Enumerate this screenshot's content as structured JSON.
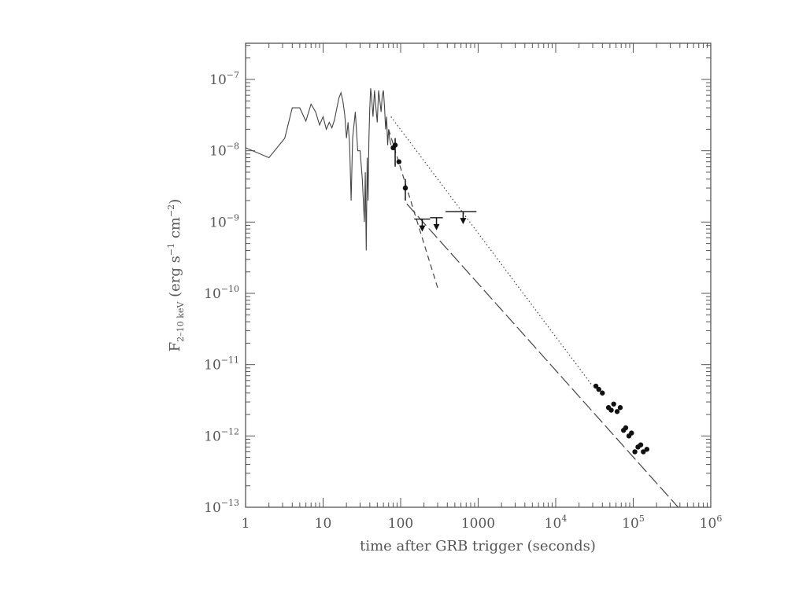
{
  "chart_data": {
    "type": "line",
    "xscale": "log",
    "yscale": "log",
    "xlim": [
      1,
      1000000
    ],
    "ylim": [
      1e-13,
      3e-07
    ],
    "grid": false,
    "legend": "none",
    "xlabel": "time after GRB trigger (seconds)",
    "ylabel": {
      "main": "F",
      "subscript": "2–10 keV",
      "units_open": " (erg s",
      "units_exp1": "−1",
      "units_mid": " cm",
      "units_exp2": "−2",
      "units_close": ")"
    },
    "x_ticks": [
      {
        "value": 1,
        "base": "1",
        "exp": ""
      },
      {
        "value": 10,
        "base": "10",
        "exp": ""
      },
      {
        "value": 100,
        "base": "100",
        "exp": ""
      },
      {
        "value": 1000,
        "base": "1000",
        "exp": ""
      },
      {
        "value": 10000,
        "base": "10",
        "exp": "4"
      },
      {
        "value": 100000,
        "base": "10",
        "exp": "5"
      },
      {
        "value": 1000000,
        "base": "10",
        "exp": "6"
      }
    ],
    "y_ticks": [
      {
        "value": 1e-13,
        "base": "10",
        "exp": "−13"
      },
      {
        "value": 1e-12,
        "base": "10",
        "exp": "−12"
      },
      {
        "value": 1e-11,
        "base": "10",
        "exp": "−11"
      },
      {
        "value": 1e-10,
        "base": "10",
        "exp": "−10"
      },
      {
        "value": 1e-09,
        "base": "10",
        "exp": "−9"
      },
      {
        "value": 1e-08,
        "base": "10",
        "exp": "−8"
      },
      {
        "value": 1e-07,
        "base": "10",
        "exp": "−7"
      }
    ],
    "colors": {
      "axis": "#555555",
      "data": "#444444",
      "points": "#111111"
    },
    "series": [
      {
        "style": "solid",
        "x": [
          1,
          2,
          3.2,
          4,
          5,
          6,
          7,
          8,
          9,
          10,
          11,
          12,
          13,
          14,
          16,
          17,
          18,
          19,
          20,
          21,
          22,
          23,
          24,
          26,
          28,
          30,
          32,
          34,
          35,
          36,
          37,
          38,
          39,
          40,
          41,
          42,
          44,
          46,
          48,
          50,
          52,
          54,
          56,
          58,
          60,
          62,
          64,
          66,
          68,
          70,
          72,
          75
        ],
        "y": [
          1.1e-08,
          8e-09,
          1.5e-08,
          4e-08,
          4e-08,
          2.6e-08,
          4.5e-08,
          3.5e-08,
          2.3e-08,
          3e-08,
          2e-08,
          2.5e-08,
          2.1e-08,
          2.7e-08,
          5.5e-08,
          6.5e-08,
          5e-08,
          3.2e-08,
          1.5e-08,
          2.5e-08,
          1.2e-08,
          2e-09,
          1.5e-08,
          3.5e-08,
          1e-08,
          1e-08,
          4e-09,
          1e-09,
          5e-09,
          4e-10,
          8e-09,
          2e-09,
          1.5e-08,
          4e-08,
          7.5e-08,
          6e-08,
          3e-08,
          7e-08,
          4e-08,
          2.5e-08,
          7e-08,
          5e-08,
          3.5e-08,
          6e-08,
          7e-08,
          4e-08,
          2e-08,
          3e-08,
          1.2e-08,
          2e-08,
          1.5e-08,
          1.2e-08
        ]
      },
      {
        "style": "dashed",
        "x": [
          70,
          300
        ],
        "y": [
          2e-08,
          1.2e-10
        ]
      },
      {
        "style": "long-dash",
        "x": [
          120,
          380000
        ],
        "y": [
          1.8e-09,
          1e-13
        ]
      },
      {
        "style": "dotted",
        "x": [
          75,
          30000
        ],
        "y": [
          3e-08,
          5e-12
        ]
      }
    ],
    "points": {
      "x": [
        80,
        85,
        95,
        115,
        33000,
        36000,
        40000,
        48000,
        52000,
        56000,
        62000,
        68000,
        75000,
        80000,
        88000,
        95000,
        105000,
        115000,
        125000,
        135000,
        150000
      ],
      "y": [
        1.1e-08,
        1.2e-08,
        7e-09,
        3e-09,
        5e-12,
        4.5e-12,
        4e-12,
        2.5e-12,
        2.3e-12,
        2.8e-12,
        2.2e-12,
        2.5e-12,
        1.2e-12,
        1.3e-12,
        1e-12,
        1.1e-12,
        6e-13,
        7e-13,
        7.5e-13,
        6e-13,
        6.5e-13
      ]
    },
    "error_bars": [
      {
        "x": 85,
        "low": 6e-09,
        "high": 1.5e-08
      },
      {
        "x": 115,
        "low": 2e-09,
        "high": 4e-09
      }
    ],
    "upper_limits": [
      {
        "x": 190,
        "y": 1.1e-09,
        "x_low": 150,
        "x_high": 240
      },
      {
        "x": 290,
        "y": 1.15e-09,
        "x_low": 240,
        "x_high": 350
      },
      {
        "x": 640,
        "y": 1.4e-09,
        "x_low": 380,
        "x_high": 950
      }
    ]
  }
}
